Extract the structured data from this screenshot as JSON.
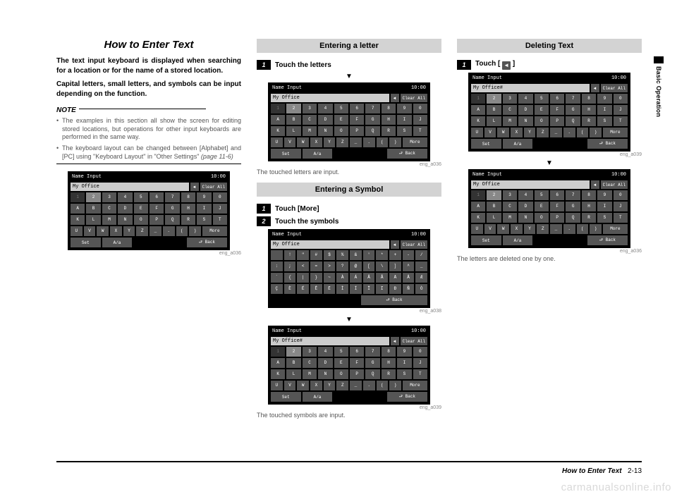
{
  "sideTab": {
    "label": "Basic Operation"
  },
  "col1": {
    "title": "How to Enter Text",
    "intro1": "The text input keyboard is displayed when searching for a location or for the name of a stored location.",
    "intro2": "Capital letters, small letters, and symbols can be input depending on the function.",
    "noteHead": "NOTE",
    "notes": [
      "The examples in this section all show the screen for editing stored locations, but operations for other input keyboards are performed in the same way.",
      "The keyboard layout can be changed between [Alphabet] and [PC] using \"Keyboard Layout\" in \"Other Settings\" "
    ],
    "pageRef": "(page 11-6)",
    "kbd": {
      "title": "Name Input",
      "clock": "10:00",
      "field": "My Office",
      "back": "◄",
      "clear": "Clear All",
      "rows": [
        [
          "1",
          "2",
          "3",
          "4",
          "5",
          "6",
          "7",
          "8",
          "9",
          "0"
        ],
        [
          "A",
          "B",
          "C",
          "D",
          "E",
          "F",
          "G",
          "H",
          "I",
          "J"
        ],
        [
          "K",
          "L",
          "M",
          "N",
          "O",
          "P",
          "Q",
          "R",
          "S",
          "T"
        ],
        [
          "U",
          "V",
          "W",
          "X",
          "Y",
          "Z",
          "_",
          ".",
          "(",
          ")",
          "More"
        ]
      ],
      "bottom": {
        "set": "Set",
        "mode": "A/a",
        "backBtn": "Back"
      },
      "imgId": "eng_a036"
    }
  },
  "col2": {
    "sectA": {
      "header": "Entering a letter",
      "step1": "Touch the letters",
      "arrow": "▼",
      "kbd": {
        "title": "Name Input",
        "clock": "10:00",
        "field": "My Office",
        "back": "◄",
        "clear": "Clear All",
        "rows": [
          [
            "1",
            "2",
            "3",
            "4",
            "5",
            "6",
            "7",
            "8",
            "9",
            "0"
          ],
          [
            "A",
            "B",
            "C",
            "D",
            "E",
            "F",
            "G",
            "H",
            "I",
            "J"
          ],
          [
            "K",
            "L",
            "M",
            "N",
            "O",
            "P",
            "Q",
            "R",
            "S",
            "T"
          ],
          [
            "U",
            "V",
            "W",
            "X",
            "Y",
            "Z",
            "_",
            ".",
            "(",
            ")",
            "More"
          ]
        ],
        "bottom": {
          "set": "Set",
          "mode": "A/a",
          "backBtn": "Back"
        },
        "imgId": "eng_a036"
      },
      "caption": "The touched letters are input."
    },
    "sectB": {
      "header": "Entering a Symbol",
      "step1": "Touch [More]",
      "step2": "Touch the symbols",
      "kbd1": {
        "title": "Name Input",
        "clock": "10:00",
        "field": "My Office",
        "back": "◄",
        "clear": "Clear All",
        "rows": [
          [
            " ",
            "!",
            "\"",
            "#",
            "$",
            "%",
            "&",
            "'",
            "*",
            "+",
            "-",
            "/"
          ],
          [
            ":",
            ";",
            "<",
            "=",
            ">",
            "?",
            "@",
            "[",
            "\\",
            "]",
            "^",
            "_"
          ],
          [
            "`",
            "{",
            "|",
            "}",
            "~",
            "À",
            "Á",
            "Â",
            "Ã",
            "Ä",
            "Å",
            "Æ"
          ],
          [
            "Ç",
            "È",
            "É",
            "Ê",
            "Ë",
            "Ì",
            "Í",
            "Î",
            "Ï",
            "Ð",
            "Ñ",
            "Ò"
          ]
        ],
        "bottom": {
          "set": "",
          "mode": "",
          "backBtn": "Back"
        },
        "imgId": "eng_a038"
      },
      "arrow": "▼",
      "kbd2": {
        "title": "Name Input",
        "clock": "10:00",
        "field": "My Office#",
        "back": "◄",
        "clear": "Clear All",
        "rows": [
          [
            "1",
            "2",
            "3",
            "4",
            "5",
            "6",
            "7",
            "8",
            "9",
            "0"
          ],
          [
            "A",
            "B",
            "C",
            "D",
            "E",
            "F",
            "G",
            "H",
            "I",
            "J"
          ],
          [
            "K",
            "L",
            "M",
            "N",
            "O",
            "P",
            "Q",
            "R",
            "S",
            "T"
          ],
          [
            "U",
            "V",
            "W",
            "X",
            "Y",
            "Z",
            "_",
            ".",
            "(",
            ")",
            "More"
          ]
        ],
        "bottom": {
          "set": "Set",
          "mode": "A/a",
          "backBtn": "Back"
        },
        "imgId": "eng_a039"
      },
      "caption": "The touched symbols are input."
    }
  },
  "col3": {
    "header": "Deleting Text",
    "step1pre": "Touch [ ",
    "step1post": " ]",
    "kbd1": {
      "title": "Name Input",
      "clock": "10:00",
      "field": "My Office#",
      "back": "◄",
      "clear": "Clear All",
      "rows": [
        [
          "1",
          "2",
          "3",
          "4",
          "5",
          "6",
          "7",
          "8",
          "9",
          "0"
        ],
        [
          "A",
          "B",
          "C",
          "D",
          "E",
          "F",
          "G",
          "H",
          "I",
          "J"
        ],
        [
          "K",
          "L",
          "M",
          "N",
          "O",
          "P",
          "Q",
          "R",
          "S",
          "T"
        ],
        [
          "U",
          "V",
          "W",
          "X",
          "Y",
          "Z",
          "_",
          ".",
          "(",
          ")",
          "More"
        ]
      ],
      "bottom": {
        "set": "Set",
        "mode": "A/a",
        "backBtn": "Back"
      },
      "imgId": "eng_a039"
    },
    "arrow": "▼",
    "kbd2": {
      "title": "Name Input",
      "clock": "10:00",
      "field": "My Office",
      "back": "◄",
      "clear": "Clear All",
      "rows": [
        [
          "1",
          "2",
          "3",
          "4",
          "5",
          "6",
          "7",
          "8",
          "9",
          "0"
        ],
        [
          "A",
          "B",
          "C",
          "D",
          "E",
          "F",
          "G",
          "H",
          "I",
          "J"
        ],
        [
          "K",
          "L",
          "M",
          "N",
          "O",
          "P",
          "Q",
          "R",
          "S",
          "T"
        ],
        [
          "U",
          "V",
          "W",
          "X",
          "Y",
          "Z",
          "_",
          ".",
          "(",
          ")",
          "More"
        ]
      ],
      "bottom": {
        "set": "Set",
        "mode": "A/a",
        "backBtn": "Back"
      },
      "imgId": "eng_a036"
    },
    "caption": "The letters are deleted one by one."
  },
  "footer": {
    "title": "How to Enter Text",
    "page": "2-13"
  },
  "watermark": "carmanualsonline.info"
}
